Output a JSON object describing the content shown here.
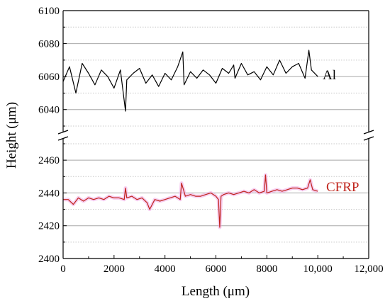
{
  "chart_data": {
    "type": "line",
    "title": "",
    "xlabel": "Length (μm)",
    "ylabel": "Height (μm)",
    "xlim": [
      0,
      12000
    ],
    "x_ticks": [
      "0",
      "2000",
      "4000",
      "6000",
      "8000",
      "10,000",
      "12,000"
    ],
    "y_axis_broken": true,
    "ylim_upper": [
      6030,
      6100
    ],
    "ylim_lower": [
      2400,
      2470
    ],
    "y_ticks_upper": [
      "6040",
      "6060",
      "6080",
      "6100"
    ],
    "y_ticks_lower": [
      "2400",
      "2420",
      "2440",
      "2460"
    ],
    "grid": "horizontal gridlines at major ticks, dotted at minor ticks",
    "series": [
      {
        "name": "Al",
        "color": "#000000",
        "x": [
          0,
          250,
          500,
          750,
          1000,
          1250,
          1500,
          1750,
          2000,
          2250,
          2450,
          2500,
          2750,
          3000,
          3250,
          3500,
          3750,
          4000,
          4250,
          4500,
          4700,
          4750,
          5000,
          5250,
          5500,
          5750,
          6000,
          6250,
          6500,
          6700,
          6750,
          7000,
          7250,
          7500,
          7750,
          8000,
          8250,
          8500,
          8750,
          9000,
          9250,
          9500,
          9650,
          9750,
          10000
        ],
        "y": [
          6057,
          6066,
          6050,
          6068,
          6062,
          6055,
          6064,
          6060,
          6053,
          6064,
          6039,
          6058,
          6062,
          6065,
          6056,
          6061,
          6054,
          6062,
          6058,
          6066,
          6075,
          6055,
          6063,
          6059,
          6064,
          6061,
          6056,
          6065,
          6062,
          6067,
          6059,
          6068,
          6061,
          6063,
          6058,
          6066,
          6061,
          6070,
          6062,
          6066,
          6068,
          6059,
          6076,
          6064,
          6060
        ]
      },
      {
        "name": "CFRP",
        "color": "#c0241c",
        "x": [
          0,
          200,
          400,
          600,
          800,
          1000,
          1200,
          1400,
          1600,
          1800,
          2000,
          2200,
          2400,
          2450,
          2500,
          2700,
          2900,
          3100,
          3300,
          3400,
          3600,
          3800,
          4000,
          4200,
          4400,
          4600,
          4650,
          4800,
          5000,
          5200,
          5400,
          5600,
          5800,
          6000,
          6100,
          6150,
          6200,
          6300,
          6500,
          6700,
          6900,
          7100,
          7300,
          7500,
          7700,
          7900,
          7950,
          8000,
          8200,
          8400,
          8600,
          8800,
          9000,
          9200,
          9400,
          9600,
          9700,
          9800,
          10000
        ],
        "y": [
          2436,
          2436,
          2433,
          2437,
          2435,
          2437,
          2436,
          2437,
          2436,
          2438,
          2437,
          2437,
          2436,
          2443,
          2437,
          2438,
          2436,
          2437,
          2434,
          2430,
          2436,
          2435,
          2436,
          2437,
          2438,
          2436,
          2446,
          2438,
          2439,
          2438,
          2438,
          2439,
          2440,
          2438,
          2436,
          2419,
          2438,
          2439,
          2440,
          2439,
          2440,
          2441,
          2440,
          2442,
          2440,
          2441,
          2451,
          2440,
          2441,
          2442,
          2441,
          2442,
          2443,
          2443,
          2442,
          2443,
          2448,
          2442,
          2441
        ]
      }
    ]
  }
}
